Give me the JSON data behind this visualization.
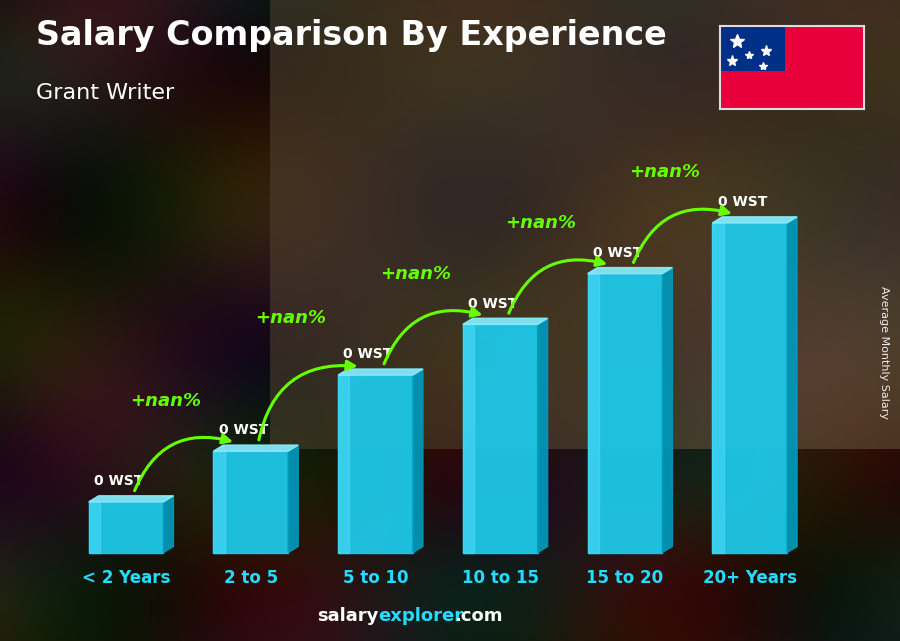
{
  "title": "Salary Comparison By Experience",
  "subtitle": "Grant Writer",
  "categories": [
    "< 2 Years",
    "2 to 5",
    "5 to 10",
    "10 to 15",
    "15 to 20",
    "20+ Years"
  ],
  "bar_heights": [
    1.0,
    2.0,
    3.5,
    4.5,
    5.5,
    6.5
  ],
  "bar_values_label": [
    "0 WST",
    "0 WST",
    "0 WST",
    "0 WST",
    "0 WST",
    "0 WST"
  ],
  "pct_labels": [
    "+nan%",
    "+nan%",
    "+nan%",
    "+nan%",
    "+nan%"
  ],
  "bar_color_main": "#1EC8E8",
  "bar_color_light": "#55DDFF",
  "bar_color_dark": "#0099BB",
  "bar_color_top": "#88EEFF",
  "pct_color": "#66FF00",
  "title_color": "#FFFFFF",
  "subtitle_color": "#FFFFFF",
  "value_label_color": "#FFFFFF",
  "xlabel_color": "#22DDFF",
  "footer_salary_color": "#FFFFFF",
  "footer_explorer_color": "#22DDFF",
  "side_label": "Average Monthly Salary",
  "side_label_color": "#FFFFFF",
  "bg_colors": [
    "#1a0a05",
    "#2a1510",
    "#1a0a05",
    "#251008",
    "#1a0808"
  ],
  "flag_red": "#E8003D",
  "flag_blue": "#002F87",
  "figsize": [
    9.0,
    6.41
  ],
  "dpi": 100
}
